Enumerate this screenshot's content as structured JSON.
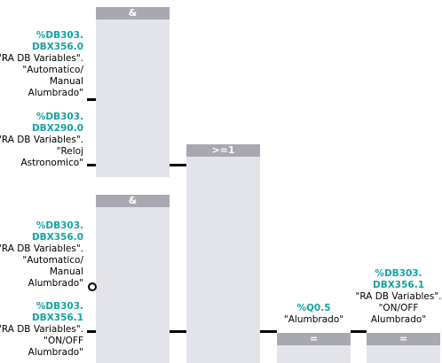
{
  "blocks": {
    "and1": {
      "label": "&"
    },
    "or1": {
      "label": ">=1"
    },
    "and2": {
      "label": "&"
    },
    "assign1": {
      "label": "="
    },
    "assign2": {
      "label": "="
    }
  },
  "labels": {
    "in1": {
      "addr1": "%DB303.",
      "addr2": "DBX356.0",
      "l1": "\"RA DB Variables\".",
      "l2": "\"Automatico/",
      "l3": "Manual",
      "l4": "Alumbrado\""
    },
    "in2": {
      "addr1": "%DB303.",
      "addr2": "DBX290.0",
      "l1": "\"RA DB Variables\".",
      "l2": "\"Reloj",
      "l3": "Astronomico\""
    },
    "in3": {
      "addr1": "%DB303.",
      "addr2": "DBX356.0",
      "l1": "\"RA DB Variables\".",
      "l2": "\"Automatico/",
      "l3": "Manual",
      "l4": "Alumbrado\""
    },
    "in4": {
      "addr1": "%DB303.",
      "addr2": "DBX356.1",
      "l1": "\"RA DB Variables\".",
      "l2": "\"ON/OFF",
      "l3": "Alumbrado\""
    },
    "out1": {
      "addr1": "%Q0.5",
      "l1": "\"Alumbrado\""
    },
    "out2": {
      "addr1": "%DB303.",
      "addr2": "DBX356.1",
      "l1": "\"RA DB Variables\".",
      "l2": "\"ON/OFF",
      "l3": "Alumbrado\""
    }
  },
  "colors": {
    "address": "#14a3a3",
    "block_body": "#e3e3ea",
    "block_header": "#a8a8b0"
  }
}
